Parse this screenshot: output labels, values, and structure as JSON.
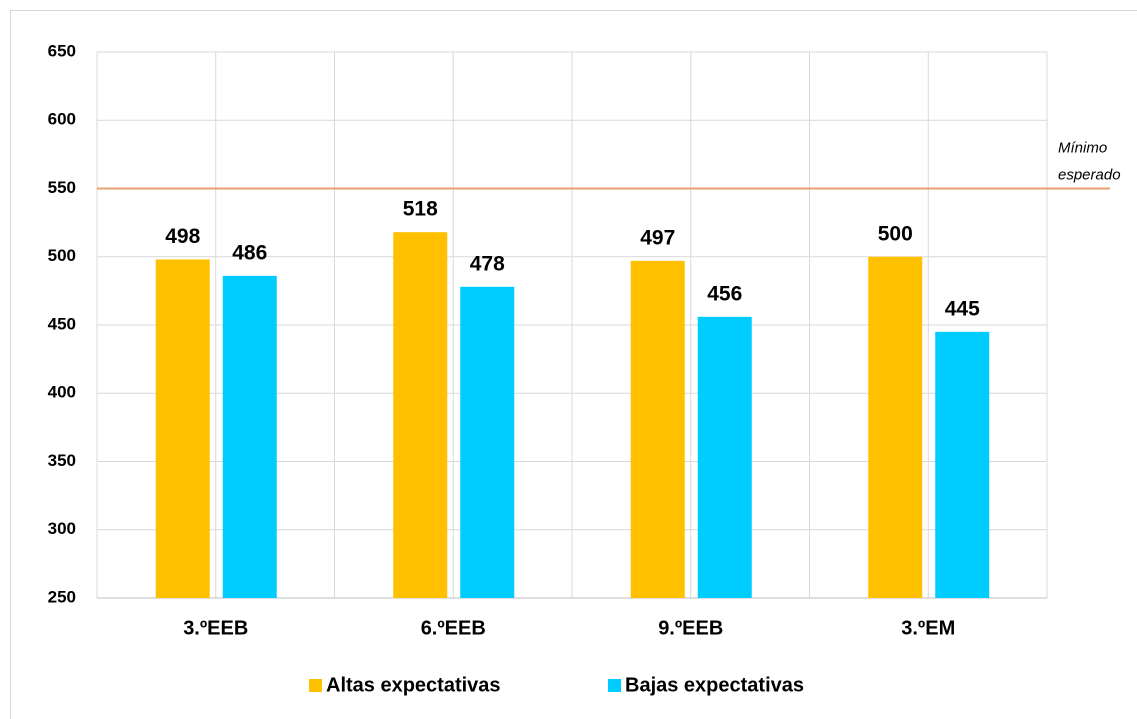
{
  "chart_data": {
    "type": "bar",
    "categories": [
      "3.ºEEB",
      "6.ºEEB",
      "9.ºEEB",
      "3.ºEM"
    ],
    "series": [
      {
        "name": "Altas expectativas",
        "color": "#FFC000",
        "values": [
          498,
          518,
          497,
          500
        ]
      },
      {
        "name": "Bajas expectativas",
        "color": "#00CCFF",
        "values": [
          486,
          478,
          456,
          445
        ]
      }
    ],
    "ylim": [
      250,
      650
    ],
    "yticks": [
      250,
      300,
      350,
      400,
      450,
      500,
      550,
      600,
      650
    ],
    "grid": true,
    "reference_line": {
      "value": 550,
      "color": "#E9A06E",
      "label": [
        "Mínimo",
        "esperado"
      ]
    },
    "legend": "bottom"
  }
}
